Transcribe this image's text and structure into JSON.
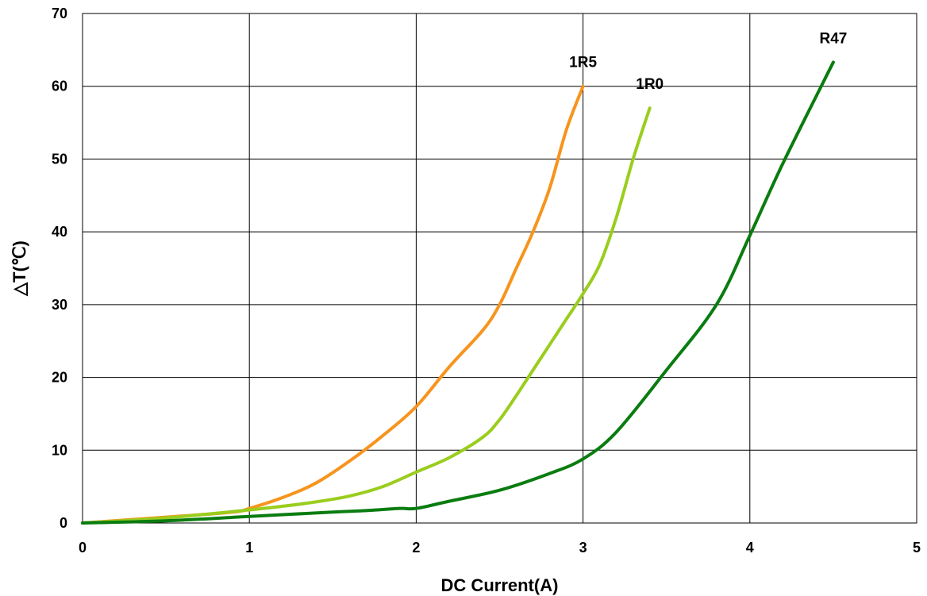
{
  "chart_data": {
    "type": "line",
    "xlabel": "DC Current(A)",
    "ylabel": "△T(℃)",
    "xlim": [
      0,
      5
    ],
    "ylim": [
      0,
      70
    ],
    "x_ticks": [
      "0",
      "1",
      "2",
      "3",
      "4",
      "5"
    ],
    "y_ticks": [
      "0",
      "10",
      "20",
      "30",
      "40",
      "50",
      "60",
      "70"
    ],
    "grid": true,
    "series": [
      {
        "name": "1R5",
        "color": "#f7941d",
        "x": [
          0,
          0.5,
          0.9,
          1.0,
          1.2,
          1.4,
          1.6,
          1.8,
          2.0,
          2.2,
          2.4,
          2.5,
          2.6,
          2.7,
          2.8,
          2.9,
          3.0
        ],
        "y": [
          0,
          0.8,
          1.5,
          2.0,
          3.5,
          5.5,
          8.5,
          12,
          16,
          21.5,
          26.5,
          30,
          35,
          40,
          46,
          54,
          60
        ]
      },
      {
        "name": "1R0",
        "color": "#9acd1e",
        "x": [
          0,
          0.5,
          1.0,
          1.2,
          1.4,
          1.6,
          1.8,
          2.0,
          2.2,
          2.4,
          2.5,
          2.6,
          2.7,
          2.8,
          2.9,
          3.0,
          3.1,
          3.2,
          3.3,
          3.4
        ],
        "y": [
          0,
          0.7,
          1.8,
          2.3,
          2.9,
          3.7,
          5.0,
          7.0,
          9.0,
          11.8,
          14.2,
          17.5,
          21.0,
          24.5,
          28.0,
          31.5,
          35.5,
          42.0,
          50.0,
          57.0
        ]
      },
      {
        "name": "R47",
        "color": "#0a7c10",
        "x": [
          0,
          0.5,
          1.0,
          1.5,
          1.7,
          1.9,
          2.0,
          2.2,
          2.5,
          2.8,
          3.0,
          3.2,
          3.5,
          3.8,
          4.0,
          4.2,
          4.5
        ],
        "y": [
          0,
          0.3,
          0.9,
          1.5,
          1.7,
          2.0,
          2.0,
          3.0,
          4.5,
          6.8,
          8.8,
          12.5,
          21.0,
          30.0,
          39.5,
          49.5,
          63.3
        ]
      }
    ]
  }
}
